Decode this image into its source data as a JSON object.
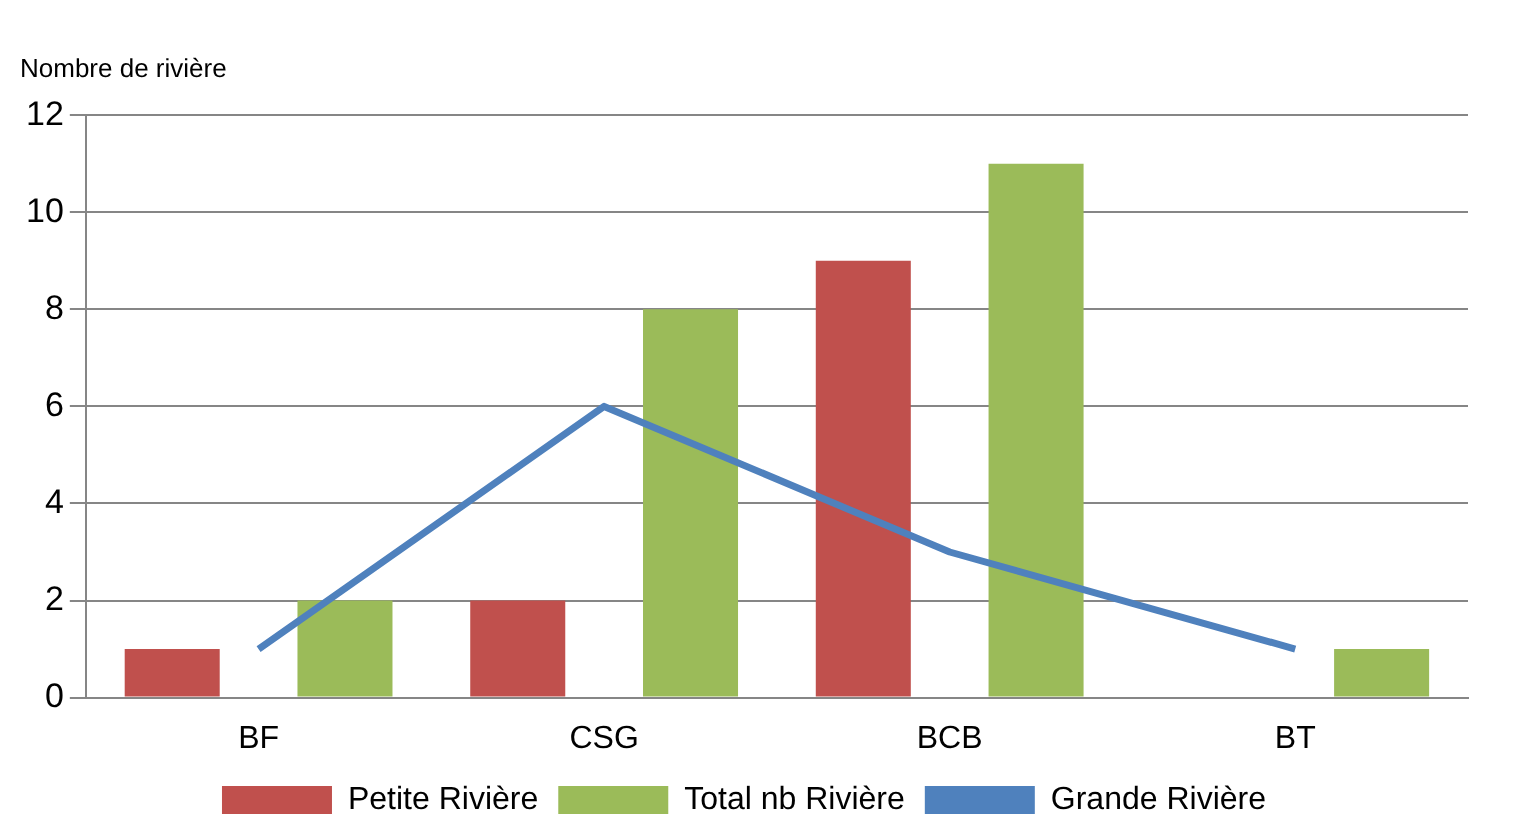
{
  "chart_data": {
    "type": "bar",
    "ylabel": "Nombre de rivière",
    "categories": [
      "BF",
      "CSG",
      "BCB",
      "BT"
    ],
    "series": [
      {
        "name": "Petite Rivière",
        "color": "#c0504d",
        "values": [
          1,
          2,
          9,
          0
        ]
      },
      {
        "name": "Total nb Rivière",
        "color": "#9bbb59",
        "values": [
          2,
          8,
          11,
          1
        ]
      },
      {
        "name": "Grande Rivière",
        "type": "line",
        "color": "#4f81bd",
        "values": [
          1,
          6,
          3,
          1
        ]
      }
    ],
    "ylim": [
      0,
      12
    ],
    "yticks": [
      0,
      2,
      4,
      6,
      8,
      10,
      12
    ],
    "grid": "y",
    "legend": "bottom",
    "marker": "none"
  }
}
